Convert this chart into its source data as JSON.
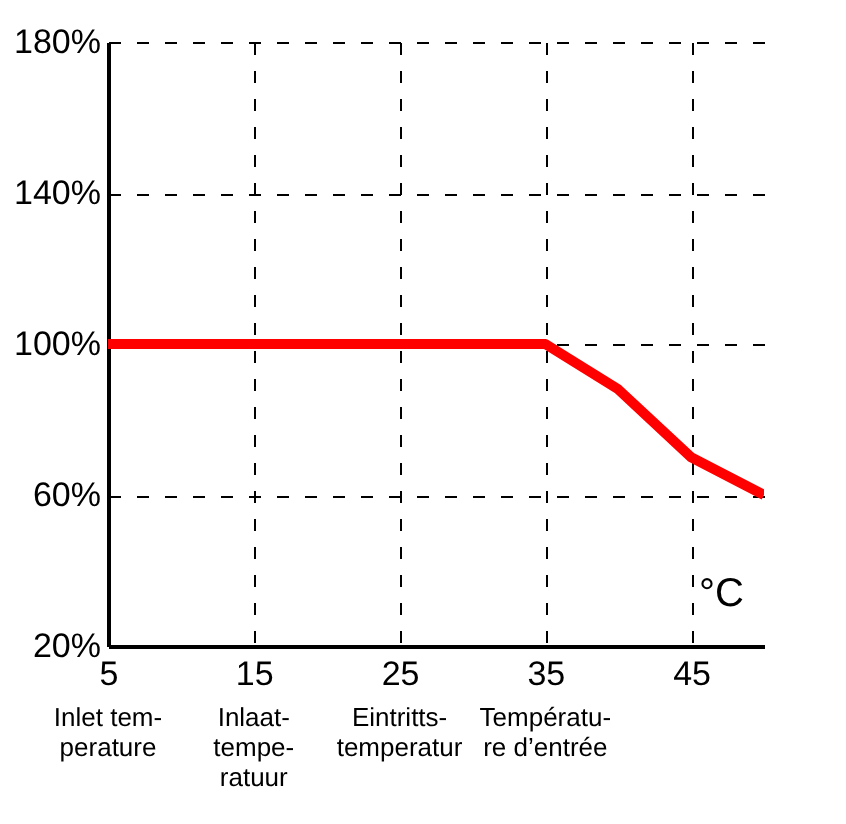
{
  "chart_data": {
    "type": "line",
    "x": [
      5,
      35,
      40,
      45,
      50
    ],
    "series": [
      {
        "color": "#ff0000",
        "values": [
          100,
          100,
          88,
          70,
          60
        ]
      }
    ],
    "xlim": [
      5,
      50
    ],
    "xticks": [
      5,
      15,
      25,
      35,
      45
    ],
    "ylim": [
      20,
      180
    ],
    "yticks": [
      {
        "value": 20,
        "label": "20%"
      },
      {
        "value": 60,
        "label": "60%"
      },
      {
        "value": 100,
        "label": "100%"
      },
      {
        "value": 140,
        "label": "140%"
      },
      {
        "value": 180,
        "label": "180%"
      }
    ],
    "grid": true,
    "xlabel": "°C",
    "marker": "none",
    "line_style": "solid",
    "annotations": [
      "Inlet tem-\nperature",
      "Inlaat-\ntempe-\nratuur",
      "Eintritts-\ntemperatur",
      "Températu-\nre d’entrée"
    ]
  }
}
